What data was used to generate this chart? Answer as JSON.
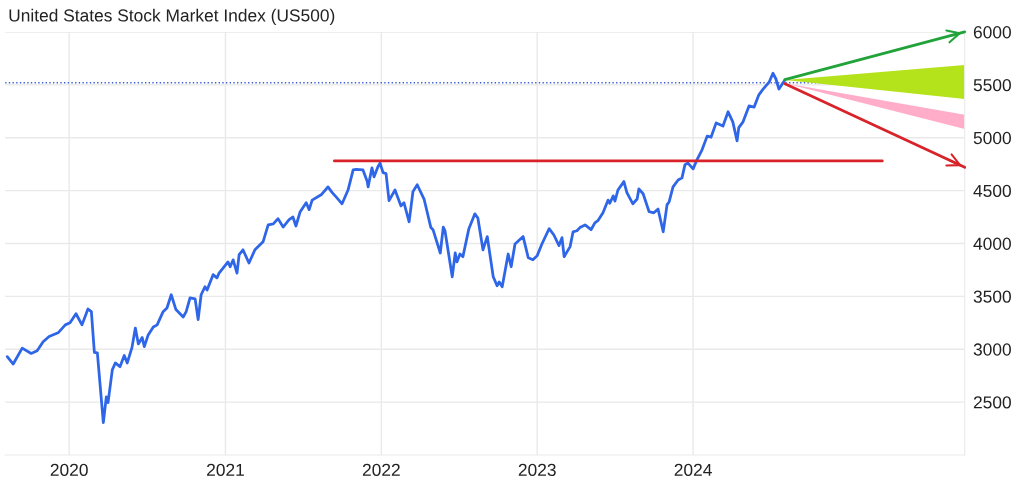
{
  "chart_data": {
    "type": "line",
    "title": "United States Stock Market Index (US500)",
    "xlim": [
      "2019-08-04",
      "2025-09-28"
    ],
    "xticks": [
      {
        "value": "2020-01-01",
        "label": "2020"
      },
      {
        "value": "2021-01-01",
        "label": "2021"
      },
      {
        "value": "2022-01-01",
        "label": "2022"
      },
      {
        "value": "2023-01-01",
        "label": "2023"
      },
      {
        "value": "2024-01-01",
        "label": "2024"
      }
    ],
    "ylim": [
      2000,
      6000
    ],
    "yticks": [
      2500,
      3000,
      3500,
      4000,
      4500,
      5000,
      5500,
      6000
    ],
    "grid": true,
    "legend": false,
    "ref_lines": [
      {
        "axis": "y",
        "value": 5520,
        "color": "#3b5fd9",
        "line_style": "dotted"
      }
    ],
    "series": [
      {
        "color": "#2f66e8",
        "x": [
          "2019-08-09",
          "2019-08-23",
          "2019-09-13",
          "2019-10-04",
          "2019-10-18",
          "2019-11-01",
          "2019-11-15",
          "2019-12-06",
          "2019-12-23",
          "2020-01-03",
          "2020-01-17",
          "2020-01-31",
          "2020-02-14",
          "2020-02-22",
          "2020-02-29",
          "2020-03-07",
          "2020-03-21",
          "2020-03-28",
          "2020-04-01",
          "2020-04-11",
          "2020-04-18",
          "2020-04-29",
          "2020-05-09",
          "2020-05-16",
          "2020-05-27",
          "2020-06-04",
          "2020-06-11",
          "2020-06-20",
          "2020-06-25",
          "2020-07-04",
          "2020-07-16",
          "2020-07-25",
          "2020-08-08",
          "2020-08-17",
          "2020-08-27",
          "2020-09-07",
          "2020-09-24",
          "2020-10-01",
          "2020-10-10",
          "2020-10-22",
          "2020-10-29",
          "2020-11-05",
          "2020-11-14",
          "2020-11-19",
          "2020-12-03",
          "2020-12-12",
          "2020-12-17",
          "2021-01-07",
          "2021-01-12",
          "2021-01-19",
          "2021-01-28",
          "2021-02-02",
          "2021-02-11",
          "2021-02-25",
          "2021-03-11",
          "2021-03-30",
          "2021-04-11",
          "2021-04-23",
          "2021-05-04",
          "2021-05-16",
          "2021-05-30",
          "2021-06-08",
          "2021-06-15",
          "2021-06-25",
          "2021-07-09",
          "2021-07-16",
          "2021-07-23",
          "2021-08-13",
          "2021-08-25",
          "2021-08-29",
          "2021-09-08",
          "2021-09-17",
          "2021-10-01",
          "2021-10-15",
          "2021-10-27",
          "2021-11-03",
          "2021-11-19",
          "2021-11-29",
          "2021-12-01",
          "2021-12-10",
          "2021-12-15",
          "2021-12-24",
          "2021-12-29",
          "2022-01-05",
          "2022-01-12",
          "2022-01-19",
          "2022-02-02",
          "2022-02-16",
          "2022-02-23",
          "2022-03-07",
          "2022-03-16",
          "2022-03-26",
          "2022-04-11",
          "2022-04-27",
          "2022-05-02",
          "2022-05-19",
          "2022-05-26",
          "2022-05-30",
          "2022-06-16",
          "2022-06-23",
          "2022-06-27",
          "2022-07-04",
          "2022-07-11",
          "2022-07-25",
          "2022-08-08",
          "2022-08-15",
          "2022-08-27",
          "2022-09-06",
          "2022-09-20",
          "2022-09-29",
          "2022-10-04",
          "2022-10-11",
          "2022-10-25",
          "2022-11-01",
          "2022-11-10",
          "2022-11-29",
          "2022-12-11",
          "2022-12-22",
          "2023-01-01",
          "2023-01-12",
          "2023-01-29",
          "2023-02-09",
          "2023-02-21",
          "2023-02-28",
          "2023-03-05",
          "2023-03-19",
          "2023-03-26",
          "2023-04-04",
          "2023-04-11",
          "2023-04-23",
          "2023-05-07",
          "2023-05-16",
          "2023-05-23",
          "2023-06-04",
          "2023-06-16",
          "2023-06-20",
          "2023-06-28",
          "2023-07-02",
          "2023-07-09",
          "2023-07-23",
          "2023-07-30",
          "2023-08-13",
          "2023-08-23",
          "2023-08-27",
          "2023-09-06",
          "2023-09-20",
          "2023-10-01",
          "2023-10-11",
          "2023-10-23",
          "2023-11-01",
          "2023-11-06",
          "2023-11-15",
          "2023-11-27",
          "2023-12-06",
          "2023-12-13",
          "2023-12-20",
          "2024-01-01",
          "2024-01-10",
          "2024-01-22",
          "2024-02-03",
          "2024-02-12",
          "2024-02-24",
          "2024-03-11",
          "2024-03-23",
          "2024-04-03",
          "2024-04-13",
          "2024-04-17",
          "2024-04-27",
          "2024-05-11",
          "2024-05-23",
          "2024-06-03",
          "2024-06-13",
          "2024-06-27",
          "2024-07-06",
          "2024-07-13",
          "2024-07-20",
          "2024-08-03"
        ],
        "values": [
          2930,
          2860,
          3010,
          2960,
          2985,
          3070,
          3120,
          3155,
          3230,
          3250,
          3335,
          3230,
          3380,
          3355,
          2970,
          2965,
          2305,
          2550,
          2495,
          2805,
          2870,
          2835,
          2940,
          2870,
          3015,
          3200,
          3050,
          3110,
          3025,
          3135,
          3210,
          3230,
          3355,
          3390,
          3515,
          3375,
          3305,
          3355,
          3485,
          3475,
          3280,
          3515,
          3590,
          3560,
          3705,
          3675,
          3720,
          3825,
          3780,
          3845,
          3720,
          3895,
          3940,
          3815,
          3940,
          4015,
          4175,
          4185,
          4235,
          4155,
          4225,
          4250,
          4165,
          4300,
          4385,
          4320,
          4410,
          4460,
          4515,
          4535,
          4480,
          4440,
          4375,
          4505,
          4695,
          4700,
          4695,
          4585,
          4535,
          4715,
          4630,
          4725,
          4760,
          4670,
          4660,
          4405,
          4505,
          4355,
          4385,
          4205,
          4490,
          4555,
          4420,
          4150,
          4130,
          3910,
          4155,
          4120,
          3685,
          3910,
          3825,
          3900,
          3875,
          4140,
          4280,
          4240,
          3940,
          4065,
          3685,
          3600,
          3635,
          3590,
          3900,
          3780,
          3995,
          4065,
          3865,
          3845,
          3885,
          3995,
          4140,
          4080,
          3980,
          4055,
          3875,
          3970,
          4110,
          4120,
          4150,
          4175,
          4130,
          4195,
          4215,
          4290,
          4410,
          4380,
          4450,
          4400,
          4505,
          4585,
          4480,
          4375,
          4420,
          4515,
          4470,
          4300,
          4290,
          4325,
          4110,
          4365,
          4395,
          4535,
          4600,
          4620,
          4745,
          4760,
          4705,
          4790,
          4885,
          5015,
          5005,
          5140,
          5110,
          5245,
          5150,
          4970,
          5095,
          5150,
          5300,
          5290,
          5405,
          5460,
          5525,
          5610,
          5555,
          5460,
          5545
        ]
      },
      {
        "color": "#d8232a",
        "x": [
          "2021-09-13",
          "2025-03-19"
        ],
        "values": [
          4780,
          4780
        ]
      },
      {
        "type": "area",
        "color": "#b5e31b",
        "x": [
          "2024-08-03",
          "2025-09-28"
        ],
        "values": [
          null,
          null
        ],
        "lower": [
          5545,
          5367
        ],
        "upper": [
          5545,
          5688
        ]
      },
      {
        "type": "area",
        "color": "#ffadc8",
        "x": [
          "2024-08-03",
          "2025-09-28"
        ],
        "values": [
          null,
          null
        ],
        "lower": [
          5515,
          5083
        ],
        "upper": [
          5515,
          5216
        ]
      },
      {
        "color": "#22a33a",
        "x": [
          "2024-08-03",
          "2025-09-28"
        ],
        "values": [
          5550,
          6000
        ]
      },
      {
        "color": "#d8232a",
        "x": [
          "2024-08-03",
          "2025-09-28"
        ],
        "values": [
          5510,
          4720
        ]
      }
    ]
  }
}
